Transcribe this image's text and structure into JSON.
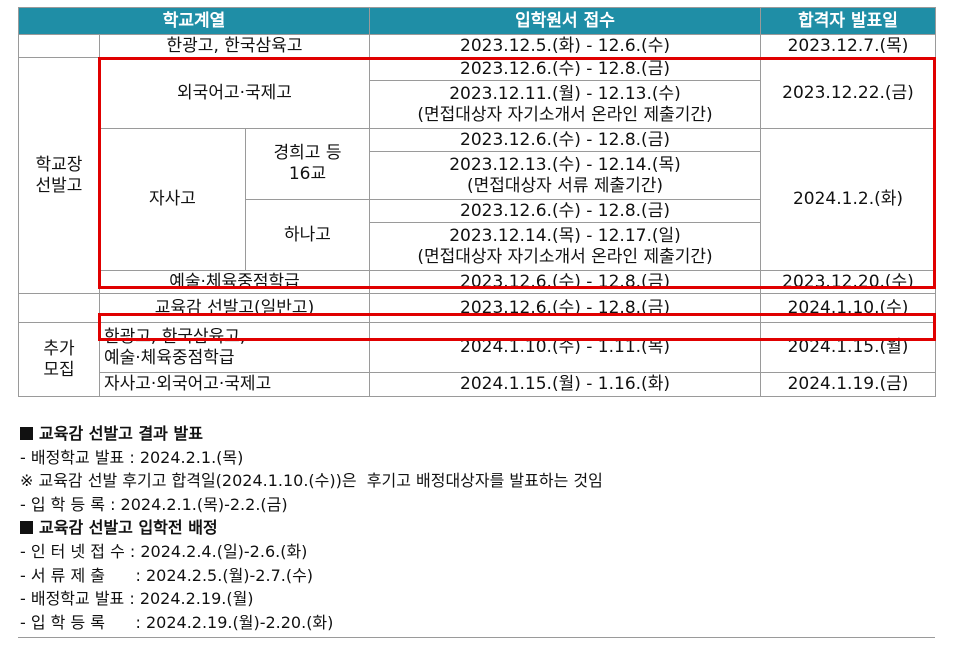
{
  "table": {
    "headers": [
      "학교계열",
      "입학원서 접수",
      "합격자 발표일"
    ],
    "row_hanguk": {
      "school": "한광고, 한국삼육고",
      "apply": "2023.12.5.(화)  - 12.6.(수)",
      "result": "2023.12.7.(목)"
    },
    "group_label": "학교장\n선발고",
    "foreign": {
      "school": "외국어고·국제고",
      "apply1": "2023.12.6.(수)  - 12.8.(금)",
      "apply2_line1": "2023.12.11.(월)  - 12.13.(수)",
      "apply2_line2": "(면접대상자 자기소개서 온라인 제출기간)",
      "result": "2023.12.22.(금)"
    },
    "private": {
      "school": "자사고",
      "kyunghee_label": "경희고 등\n16교",
      "kyunghee_apply1": "2023.12.6.(수)  - 12.8.(금)",
      "kyunghee_apply2_line1": "2023.12.13.(수)  - 12.14.(목)",
      "kyunghee_apply2_line2": "(면접대상자 서류 제출기간)",
      "hana_label": "하나고",
      "hana_apply1": "2023.12.6.(수)  - 12.8.(금)",
      "hana_apply2_line1": "2023.12.14.(목)  - 12.17.(일)",
      "hana_apply2_line2": "(면접대상자 자기소개서 온라인 제출기간)",
      "result": "2024.1.2.(화)"
    },
    "arts": {
      "school": "예술·체육중점학급",
      "apply": "2023.12.6.(수)  - 12.8.(금)",
      "result": "2023.12.20.(수)"
    },
    "superintendent": {
      "school": "교육감 선발고(일반고)",
      "apply": "2023.12.6.(수)  - 12.8.(금)",
      "result": "2024.1.10.(수)"
    },
    "additional_label": "추가\n모집",
    "add1": {
      "school_line1": "한광고, 한국삼육고,",
      "school_line2": "예술·체육중점학급",
      "apply": "2024.1.10.(수)  - 1.11.(목)",
      "result": "2024.1.15.(월)"
    },
    "add2": {
      "school": "자사고·외국어고·국제고",
      "apply": "2024.1.15.(월)  - 1.16.(화)",
      "result": "2024.1.19.(금)"
    }
  },
  "notes": {
    "heading1": "교육감 선발고 결과 발표",
    "line1": "- 배정학교 발표 : 2024.2.1.(목)",
    "line2": "※ 교육감 선발 후기고 합격일(2024.1.10.(수))은  후기고 배정대상자를 발표하는 것임",
    "line3": "- 입 학 등 록 : 2024.2.1.(목)-2.2.(금)",
    "heading2": "교육감 선발고 입학전 배정",
    "line4": "- 인 터 넷 접 수 : 2024.2.4.(일)-2.6.(화)",
    "line5": "- 서 류 제 출      : 2024.2.5.(월)-2.7.(수)",
    "line6": "- 배정학교 발표 : 2024.2.19.(월)",
    "line7": "- 입 학 등 록      : 2024.2.19.(월)-2.20.(화)"
  },
  "colors": {
    "header_bg": "#1f8ea6",
    "highlight": "#e00000"
  }
}
